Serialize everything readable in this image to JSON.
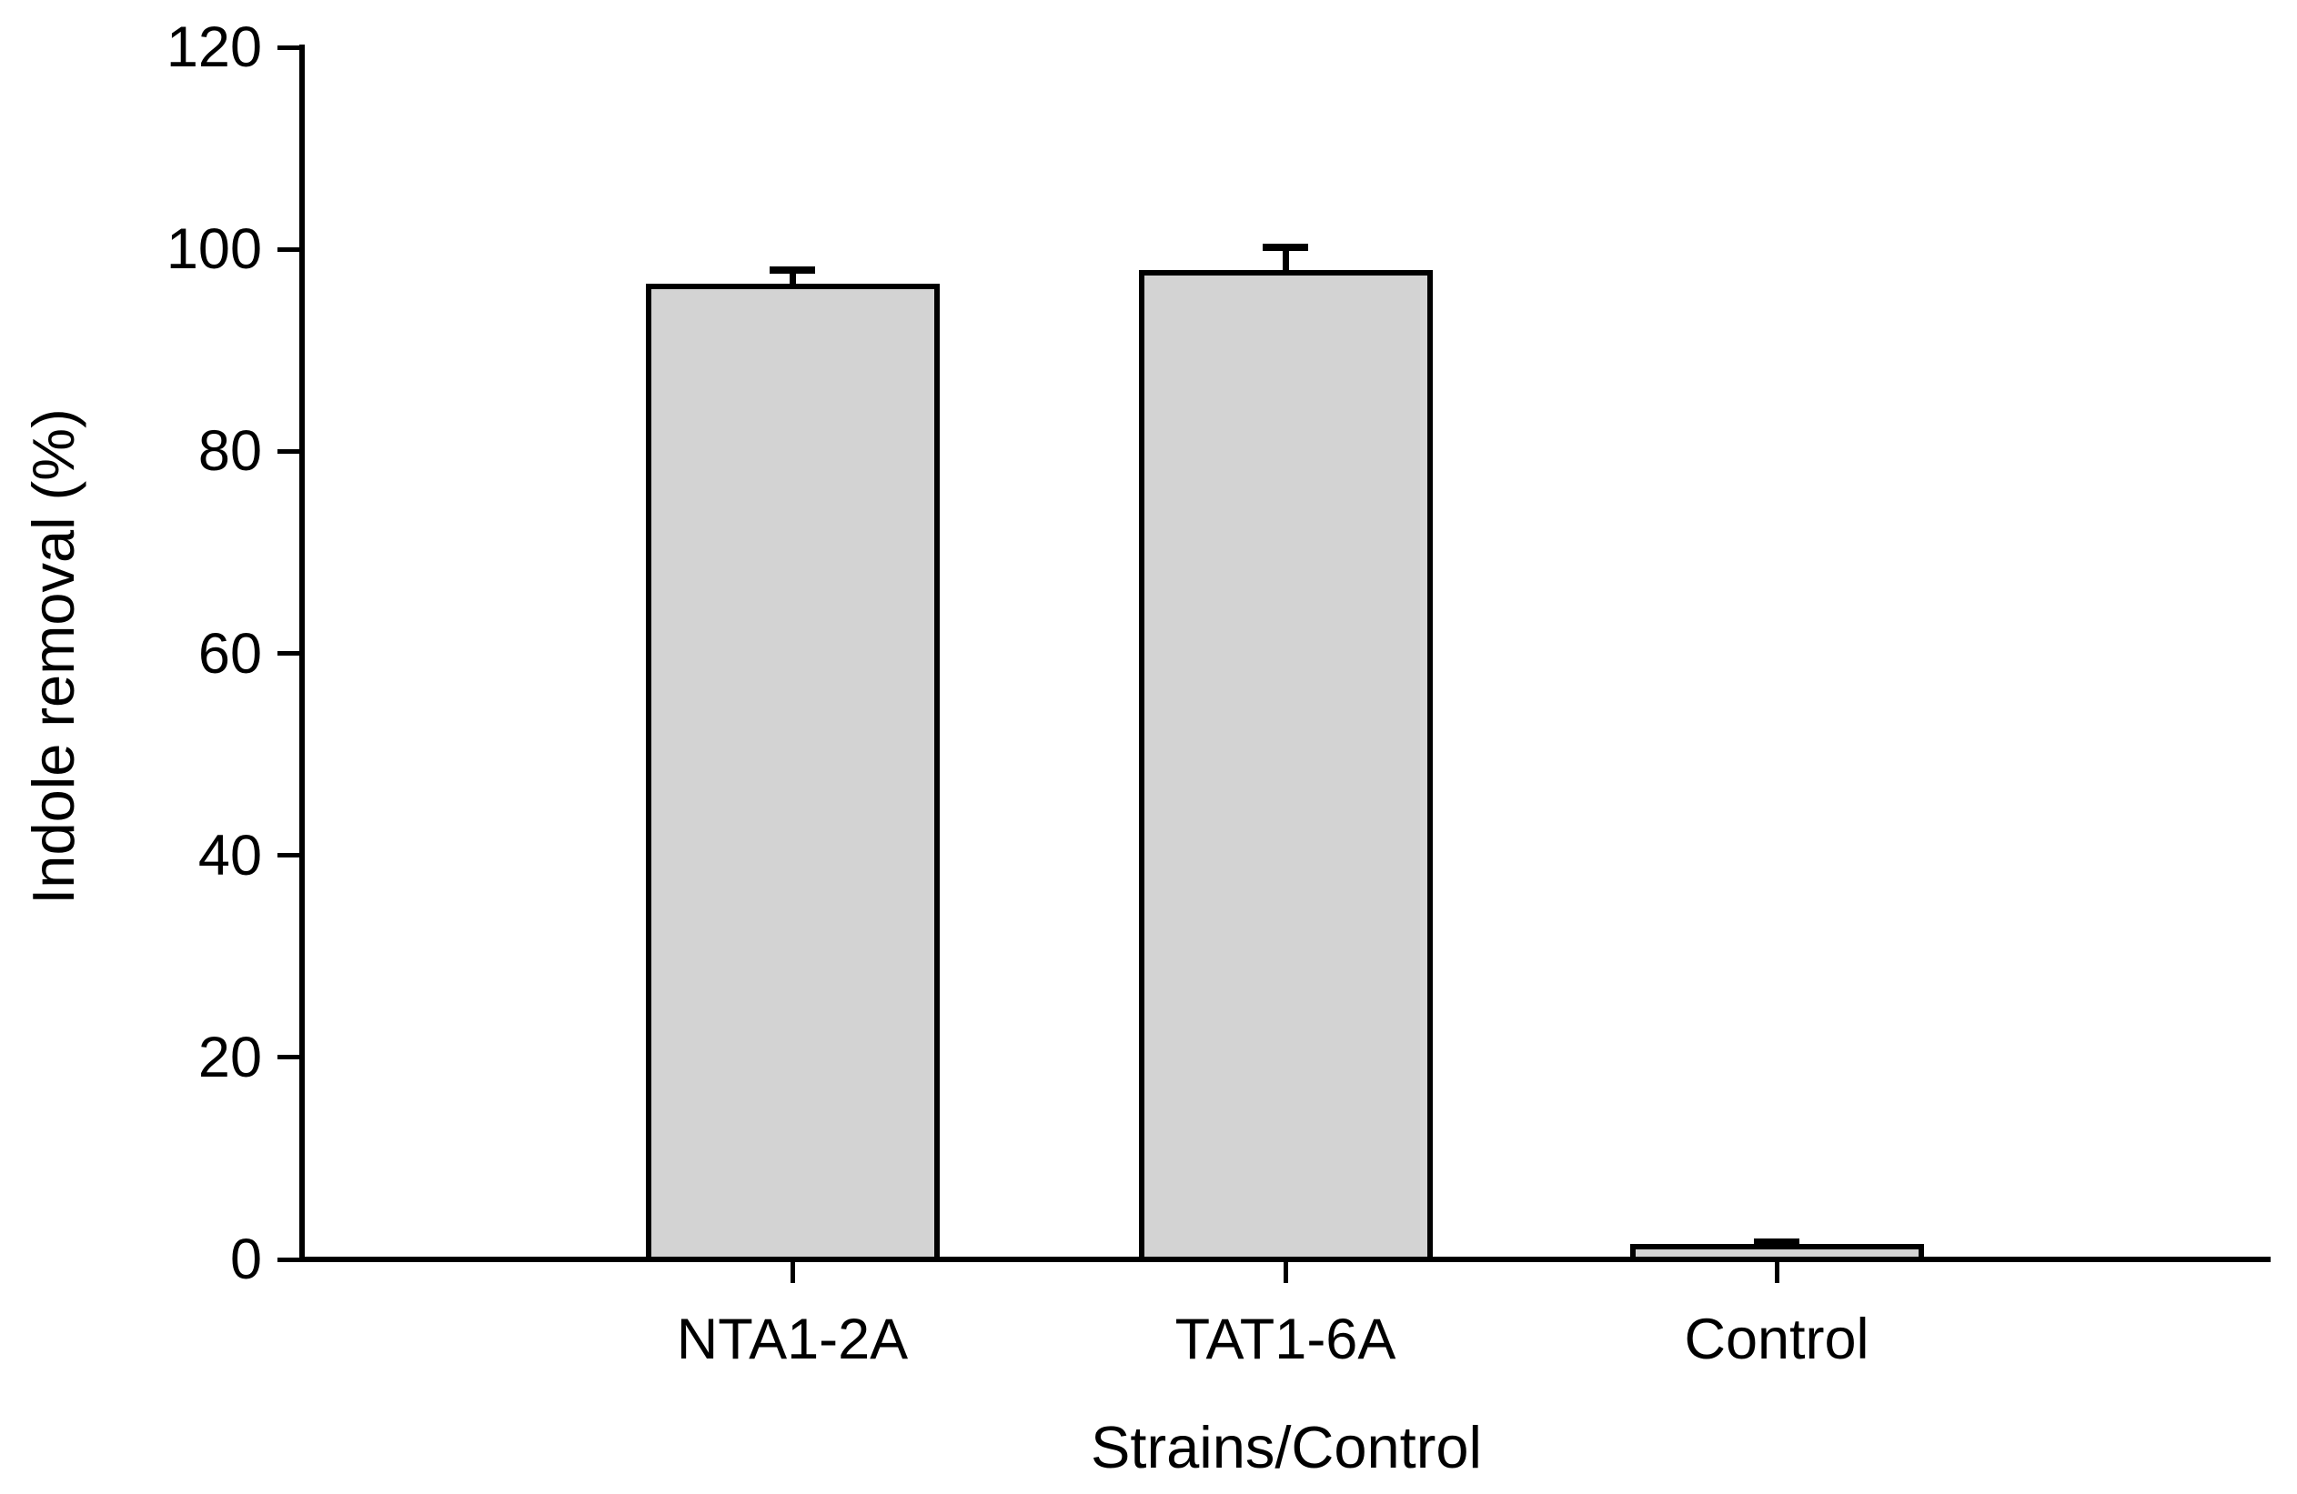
{
  "figure": {
    "background": "#ffffff",
    "bar_fill": "#d3d3d3",
    "bar_outline": "#000000",
    "axis_color": "#000000",
    "text_color": "#000000"
  },
  "chart_data": {
    "type": "bar",
    "title": "",
    "xlabel": "Strains/Control",
    "ylabel": "Indole removal (%)",
    "categories": [
      "NTA1-2A",
      "TAT1-6A",
      "Control"
    ],
    "values": [
      96.3,
      97.7,
      1.3
    ],
    "error_plus": [
      1.6,
      2.5,
      0.4
    ],
    "ylim": [
      0,
      120
    ],
    "yticks": [
      0,
      20,
      40,
      60,
      80,
      100,
      120
    ],
    "ytick_labels": [
      "0",
      "20",
      "40",
      "60",
      "80",
      "100",
      "120"
    ],
    "grid": false,
    "legend_position": "none",
    "error_bar_direction": "upper-only"
  }
}
